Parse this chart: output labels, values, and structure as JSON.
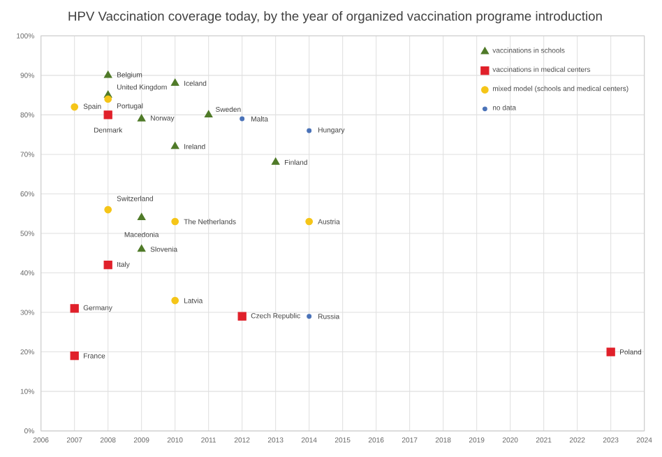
{
  "chart_data": {
    "type": "scatter",
    "title": "HPV Vaccination coverage today, by the year of organized vaccination programe introduction",
    "xlim": [
      2006,
      2024
    ],
    "xticks": [
      2006,
      2007,
      2008,
      2009,
      2010,
      2011,
      2012,
      2013,
      2014,
      2015,
      2016,
      2017,
      2018,
      2019,
      2020,
      2021,
      2022,
      2023,
      2024
    ],
    "ylim": [
      0,
      100
    ],
    "yticks": [
      {
        "value": 0,
        "label": "0%"
      },
      {
        "value": 10,
        "label": "10%"
      },
      {
        "value": 20,
        "label": "20%"
      },
      {
        "value": 30,
        "label": "30%"
      },
      {
        "value": 40,
        "label": "40%"
      },
      {
        "value": 50,
        "label": "50%"
      },
      {
        "value": 60,
        "label": "60%"
      },
      {
        "value": 70,
        "label": "70%"
      },
      {
        "value": 80,
        "label": "80%"
      },
      {
        "value": 90,
        "label": "90%"
      },
      {
        "value": 100,
        "label": "100%"
      }
    ],
    "grid": true,
    "legend": "top right",
    "series": [
      {
        "name": "vaccinations in schools",
        "color": "#4f7a28",
        "marker": "triangle",
        "x": [
          2008,
          2008,
          2010,
          2009,
          2011,
          2010,
          2013,
          2009,
          2009
        ],
        "values": [
          90,
          85,
          88,
          79,
          80,
          72,
          68,
          54,
          46
        ]
      },
      {
        "name": "vaccinations in medical centers",
        "color": "#e0202a",
        "marker": "square",
        "x": [
          2008,
          2008,
          2007,
          2007,
          2012,
          2023
        ],
        "values": [
          80,
          42,
          31,
          19,
          29,
          20
        ]
      },
      {
        "name": "mixed model (schools and medical centers)",
        "color": "#f5c518",
        "marker": "circle",
        "x": [
          2007,
          2008,
          2008,
          2010,
          2014,
          2010
        ],
        "values": [
          82,
          84,
          56,
          53,
          53,
          33
        ]
      },
      {
        "name": "no data",
        "color": "#4a72b8",
        "marker": "circle",
        "x": [
          2012,
          2014,
          2014
        ],
        "values": [
          79,
          76,
          29
        ]
      }
    ],
    "annotations": [
      {
        "text": "Belgium",
        "x": 2008,
        "y": 90
      },
      {
        "text": "United Kingdom",
        "x": 2008,
        "y": 85
      },
      {
        "text": "Iceland",
        "x": 2010,
        "y": 88
      },
      {
        "text": "Norway",
        "x": 2009,
        "y": 79
      },
      {
        "text": "Sweden",
        "x": 2011,
        "y": 80
      },
      {
        "text": "Ireland",
        "x": 2010,
        "y": 72
      },
      {
        "text": "Finland",
        "x": 2013,
        "y": 68
      },
      {
        "text": "Macedonia",
        "x": 2009,
        "y": 54
      },
      {
        "text": "Slovenia",
        "x": 2009,
        "y": 46
      },
      {
        "text": "Denmark",
        "x": 2008,
        "y": 80
      },
      {
        "text": "Italy",
        "x": 2008,
        "y": 42
      },
      {
        "text": "Germany",
        "x": 2007,
        "y": 31
      },
      {
        "text": "France",
        "x": 2007,
        "y": 19
      },
      {
        "text": "Czech Republic",
        "x": 2012,
        "y": 29
      },
      {
        "text": "Poland",
        "x": 2023,
        "y": 20
      },
      {
        "text": "Spain",
        "x": 2007,
        "y": 82
      },
      {
        "text": "Portugal",
        "x": 2008,
        "y": 84
      },
      {
        "text": "Switzerland",
        "x": 2008,
        "y": 56
      },
      {
        "text": "The Netherlands",
        "x": 2010,
        "y": 53
      },
      {
        "text": "Austria",
        "x": 2014,
        "y": 53
      },
      {
        "text": "Latvia",
        "x": 2010,
        "y": 33
      },
      {
        "text": "Malta",
        "x": 2012,
        "y": 79
      },
      {
        "text": "Hungary",
        "x": 2014,
        "y": 76
      },
      {
        "text": "Russia",
        "x": 2014,
        "y": 29
      }
    ]
  }
}
